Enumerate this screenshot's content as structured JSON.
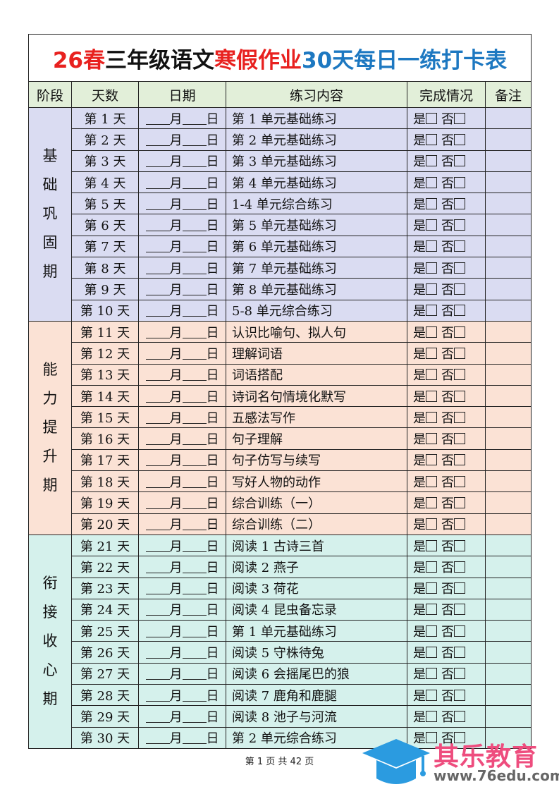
{
  "title": {
    "parts": [
      {
        "text": "26春",
        "color": "red"
      },
      {
        "text": "三年级语文",
        "color": "black"
      },
      {
        "text": "寒假作业",
        "color": "red"
      },
      {
        "text": "30天每日一练打卡表",
        "color": "blue"
      }
    ]
  },
  "colors": {
    "red": "#e8211f",
    "blue": "#1d78c1",
    "header_bg": "#e2efd9",
    "phase1_bg": "#dadcf2",
    "phase2_bg": "#fbe2d5",
    "phase3_bg": "#d5f1ec"
  },
  "headers": [
    "阶段",
    "天数",
    "日期",
    "练习内容",
    "完成情况",
    "备注"
  ],
  "date_template": {
    "month": "月",
    "day": "日"
  },
  "done_template": {
    "yes": "是",
    "no": "否"
  },
  "phases": [
    {
      "name": "基础巩固期",
      "rows": [
        {
          "day": "第 1 天",
          "content": "第 1 单元基础练习"
        },
        {
          "day": "第 2 天",
          "content": "第 2 单元基础练习"
        },
        {
          "day": "第 3 天",
          "content": "第 3 单元基础练习"
        },
        {
          "day": "第 4 天",
          "content": "第 4 单元基础练习"
        },
        {
          "day": "第 5 天",
          "content": "1-4 单元综合练习"
        },
        {
          "day": "第 6 天",
          "content": "第 5 单元基础练习"
        },
        {
          "day": "第 7 天",
          "content": "第 6 单元基础练习"
        },
        {
          "day": "第 8 天",
          "content": "第 7 单元基础练习"
        },
        {
          "day": "第 9 天",
          "content": "第 8 单元基础练习"
        },
        {
          "day": "第 10 天",
          "content": "5-8 单元综合练习"
        }
      ]
    },
    {
      "name": "能力提升期",
      "rows": [
        {
          "day": "第 11 天",
          "content": "认识比喻句、拟人句"
        },
        {
          "day": "第 12 天",
          "content": "理解词语"
        },
        {
          "day": "第 13 天",
          "content": "词语搭配"
        },
        {
          "day": "第 14 天",
          "content": "诗词名句情境化默写"
        },
        {
          "day": "第 15 天",
          "content": "五感法写作"
        },
        {
          "day": "第 16 天",
          "content": "句子理解"
        },
        {
          "day": "第 17 天",
          "content": "句子仿写与续写"
        },
        {
          "day": "第 18 天",
          "content": "写好人物的动作"
        },
        {
          "day": "第 19 天",
          "content": "综合训练（一）"
        },
        {
          "day": "第 20 天",
          "content": "综合训练（二）"
        }
      ]
    },
    {
      "name": "衔接收心期",
      "rows": [
        {
          "day": "第 21 天",
          "content": "阅读 1  古诗三首"
        },
        {
          "day": "第 22 天",
          "content": "阅读 2  燕子"
        },
        {
          "day": "第 23 天",
          "content": "阅读 3  荷花"
        },
        {
          "day": "第 24 天",
          "content": "阅读 4  昆虫备忘录"
        },
        {
          "day": "第 25 天",
          "content": "第 1 单元基础练习"
        },
        {
          "day": "第 26 天",
          "content": "阅读 5  守株待兔"
        },
        {
          "day": "第 27 天",
          "content": "阅读 6  会摇尾巴的狼"
        },
        {
          "day": "第 28 天",
          "content": "阅读 7  鹿角和鹿腿"
        },
        {
          "day": "第 29 天",
          "content": "阅读 8  池子与河流"
        },
        {
          "day": "第 30 天",
          "content": "第 2 单元综合练习"
        }
      ]
    }
  ],
  "footer": "第 1 页 共 42 页",
  "watermark": {
    "name": "其乐教育",
    "url": "www.76edu.com"
  }
}
